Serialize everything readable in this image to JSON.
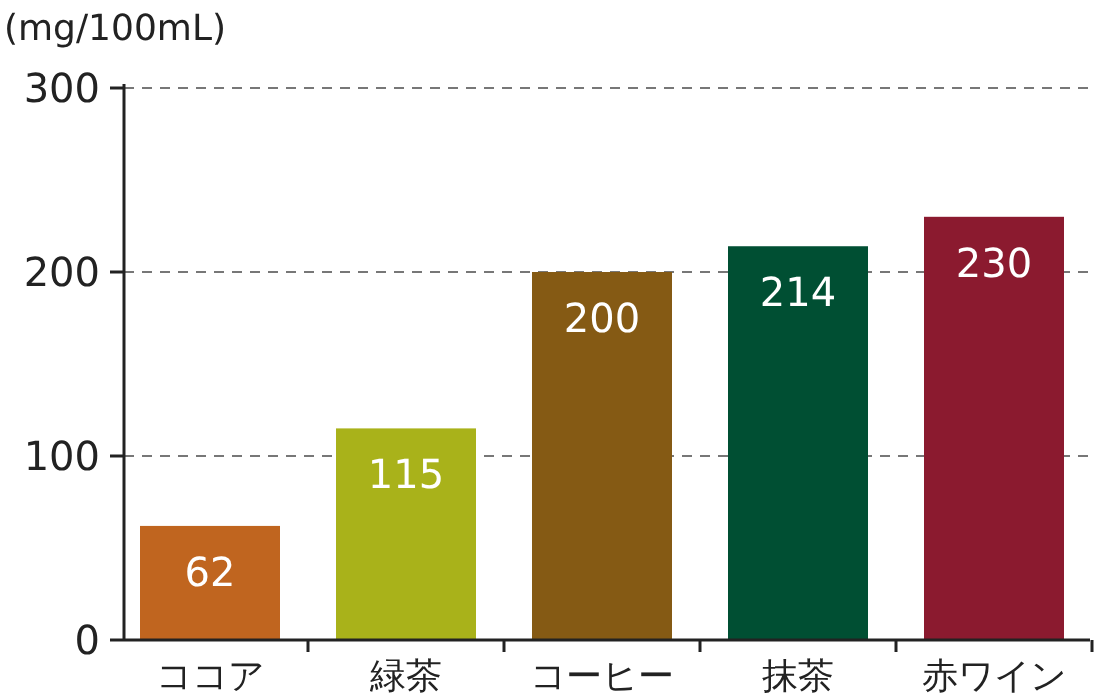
{
  "chart_data": {
    "type": "bar",
    "ylabel": "(mg/100mL)",
    "categories": [
      "ココア",
      "緑茶",
      "コーヒー",
      "抹茶",
      "赤ワイン"
    ],
    "values": [
      62,
      115,
      200,
      214,
      230
    ],
    "colors": [
      "#c0651f",
      "#a9b21a",
      "#855a14",
      "#004f33",
      "#8b1a2f"
    ],
    "ylim": [
      0,
      300
    ],
    "yticks": [
      0,
      100,
      200,
      300
    ],
    "grid": "y",
    "data_labels": true
  }
}
